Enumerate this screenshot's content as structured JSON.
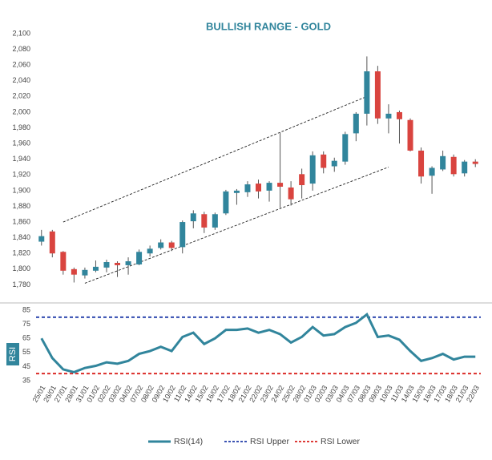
{
  "chart_data": [
    {
      "type": "candlestick",
      "title": "BULLISH RANGE  - GOLD",
      "open": [
        1835,
        1848,
        1822,
        1800,
        1792,
        1798,
        1802,
        1808,
        1805,
        1806,
        1820,
        1827,
        1834,
        1828,
        1861,
        1870,
        1853,
        1871,
        1897,
        1898,
        1909,
        1900,
        1910,
        1904,
        1921,
        1909,
        1946,
        1931,
        1937,
        1973,
        1998,
        2052,
        1992,
        2000,
        1990,
        1951,
        1919,
        1927,
        1943,
        1922,
        1937
      ],
      "high": [
        1850,
        1850,
        1823,
        1802,
        1802,
        1811,
        1812,
        1810,
        1815,
        1825,
        1830,
        1838,
        1836,
        1862,
        1875,
        1873,
        1872,
        1901,
        1902,
        1912,
        1914,
        1912,
        1974,
        1912,
        1928,
        1950,
        1950,
        1942,
        1975,
        2000,
        2071,
        2059,
        2010,
        2002,
        1992,
        1955,
        1931,
        1951,
        1946,
        1939,
        1940
      ],
      "low": [
        1830,
        1815,
        1793,
        1783,
        1788,
        1796,
        1796,
        1790,
        1793,
        1805,
        1816,
        1825,
        1823,
        1820,
        1852,
        1846,
        1850,
        1869,
        1882,
        1892,
        1890,
        1886,
        1878,
        1881,
        1890,
        1900,
        1922,
        1924,
        1933,
        1963,
        1983,
        1985,
        1973,
        1960,
        1950,
        1909,
        1896,
        1925,
        1918,
        1918,
        1930
      ],
      "close": [
        1842,
        1820,
        1798,
        1793,
        1799,
        1803,
        1809,
        1805,
        1810,
        1822,
        1826,
        1834,
        1827,
        1860,
        1871,
        1853,
        1870,
        1899,
        1900,
        1908,
        1899,
        1910,
        1905,
        1889,
        1907,
        1945,
        1929,
        1938,
        1972,
        1998,
        2052,
        1992,
        1998,
        1991,
        1951,
        1918,
        1929,
        1944,
        1921,
        1937,
        1934
      ],
      "up_color": "#31859c",
      "down_color": "#d9443f",
      "ylim": [
        1760,
        2100
      ],
      "yticks": [
        {
          "value": 1780,
          "label": "1,780"
        },
        {
          "value": 1800,
          "label": "1,800"
        },
        {
          "value": 1820,
          "label": "1,820"
        },
        {
          "value": 1840,
          "label": "1,840"
        },
        {
          "value": 1860,
          "label": "1,860"
        },
        {
          "value": 1880,
          "label": "1,880"
        },
        {
          "value": 1900,
          "label": "1,900"
        },
        {
          "value": 1920,
          "label": "1,920"
        },
        {
          "value": 1940,
          "label": "1,940"
        },
        {
          "value": 1960,
          "label": "1,960"
        },
        {
          "value": 1980,
          "label": "1,980"
        },
        {
          "value": 2000,
          "label": "2,000"
        },
        {
          "value": 2020,
          "label": "2,020"
        },
        {
          "value": 2040,
          "label": "2,040"
        },
        {
          "value": 2060,
          "label": "2,060"
        },
        {
          "value": 2080,
          "label": "2,080"
        },
        {
          "value": 2100,
          "label": "2,100"
        }
      ],
      "trendlines": [
        {
          "start": [
            2,
            1860
          ],
          "end": [
            30,
            2020
          ]
        },
        {
          "start": [
            4,
            1782
          ],
          "end": [
            32,
            1930
          ]
        }
      ]
    },
    {
      "type": "line",
      "ylabel": "RSI",
      "categories": [
        "25/01",
        "26/01",
        "27/01",
        "28/01",
        "31/01",
        "01/02",
        "02/02",
        "03/02",
        "04/02",
        "07/02",
        "08/02",
        "09/02",
        "10/02",
        "11/02",
        "14/02",
        "15/02",
        "16/02",
        "17/02",
        "18/02",
        "21/02",
        "22/02",
        "23/02",
        "24/02",
        "25/02",
        "28/02",
        "01/03",
        "02/03",
        "03/03",
        "04/03",
        "07/03",
        "08/03",
        "09/03",
        "10/03",
        "11/03",
        "14/03",
        "15/03",
        "16/03",
        "17/03",
        "18/03",
        "21/03",
        "22/03"
      ],
      "series": [
        {
          "name": "RSI(14)",
          "color": "#31859c",
          "values": [
            65,
            51,
            43,
            41,
            44,
            45.5,
            48,
            47,
            49,
            54,
            56,
            59,
            56,
            66,
            69,
            61,
            65,
            71,
            71,
            72,
            69,
            71,
            68,
            62,
            66,
            73,
            67,
            68,
            73,
            76,
            82,
            66,
            67,
            64,
            56,
            49,
            51,
            54,
            50,
            52,
            52
          ]
        }
      ],
      "reference_lines": [
        {
          "name": "RSI Upper",
          "value": 80,
          "color": "#1f3aa8"
        },
        {
          "name": "RSI Lower",
          "value": 40,
          "color": "#d9201c"
        }
      ],
      "ylim": [
        35,
        85
      ],
      "yticks": [
        35,
        45,
        55,
        65,
        75,
        85
      ]
    }
  ]
}
